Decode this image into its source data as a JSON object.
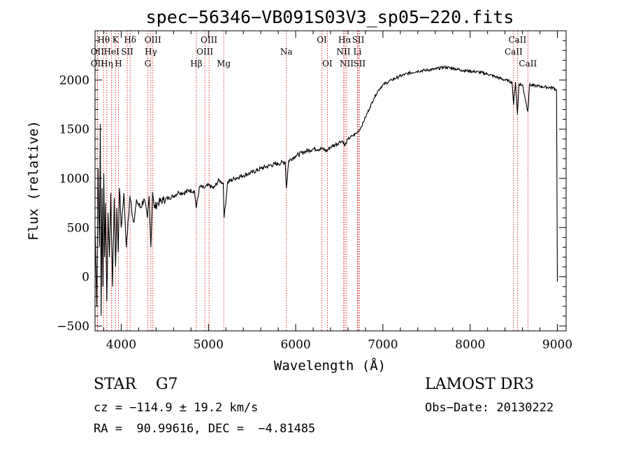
{
  "chart_data": {
    "type": "line",
    "title": "spec−56346−VB091S03V3_sp05−220.fits",
    "xlabel": "Wavelength (Å)",
    "ylabel": "Flux (relative)",
    "xlim": [
      3700,
      9100
    ],
    "ylim": [
      -550,
      2500
    ],
    "xticks": [
      4000,
      5000,
      6000,
      7000,
      8000,
      9000
    ],
    "xtick_labels": [
      "4000",
      "5000",
      "6000",
      "7000",
      "8000",
      "9000"
    ],
    "yticks": [
      -500,
      0,
      500,
      1000,
      1500,
      2000
    ],
    "ytick_labels": [
      "−500",
      "0",
      "500",
      "1000",
      "1500",
      "2000"
    ],
    "x_minor_step": 200,
    "y_minor_step": 100,
    "series": [
      {
        "name": "flux",
        "x": [
          3700,
          3720,
          3735,
          3750,
          3760,
          3770,
          3780,
          3790,
          3800,
          3810,
          3820,
          3835,
          3850,
          3865,
          3880,
          3900,
          3920,
          3935,
          3950,
          3965,
          3980,
          4000,
          4030,
          4060,
          4100,
          4140,
          4180,
          4220,
          4260,
          4300,
          4320,
          4340,
          4360,
          4380,
          4420,
          4480,
          4540,
          4600,
          4660,
          4720,
          4780,
          4840,
          4860,
          4900,
          4950,
          5000,
          5060,
          5120,
          5170,
          5180,
          5220,
          5300,
          5400,
          5500,
          5600,
          5700,
          5800,
          5880,
          5893,
          5920,
          6000,
          6100,
          6200,
          6300,
          6360,
          6400,
          6450,
          6500,
          6540,
          6563,
          6600,
          6650,
          6700,
          6750,
          6800,
          6850,
          6900,
          6950,
          7000,
          7100,
          7200,
          7300,
          7400,
          7500,
          7600,
          7700,
          7800,
          7900,
          8000,
          8100,
          8200,
          8300,
          8400,
          8480,
          8498,
          8520,
          8542,
          8560,
          8600,
          8662,
          8680,
          8750,
          8850,
          8950,
          8990,
          9000
        ],
        "y": [
          500,
          -300,
          1100,
          300,
          1550,
          -400,
          900,
          -100,
          1050,
          200,
          750,
          -250,
          650,
          200,
          850,
          -100,
          800,
          100,
          700,
          250,
          900,
          500,
          850,
          300,
          820,
          560,
          770,
          700,
          790,
          600,
          820,
          300,
          860,
          700,
          750,
          780,
          800,
          820,
          860,
          850,
          880,
          870,
          700,
          920,
          900,
          930,
          900,
          980,
          950,
          600,
          960,
          1000,
          1030,
          1060,
          1100,
          1130,
          1150,
          1170,
          900,
          1180,
          1230,
          1270,
          1300,
          1300,
          1280,
          1320,
          1340,
          1370,
          1380,
          1330,
          1400,
          1430,
          1460,
          1520,
          1620,
          1720,
          1820,
          1900,
          1950,
          2000,
          2040,
          2070,
          2090,
          2100,
          2110,
          2130,
          2120,
          2100,
          2090,
          2080,
          2060,
          2030,
          2000,
          1980,
          1750,
          1980,
          1650,
          1960,
          1950,
          1680,
          1950,
          1940,
          1930,
          1920,
          1900,
          -50
        ]
      }
    ],
    "emission_lines": [
      {
        "name": "Hθ",
        "x": 3798,
        "row": 0
      },
      {
        "name": "OII",
        "x": 3727,
        "row": 1
      },
      {
        "name": "OII",
        "x": 3727,
        "row": 2
      },
      {
        "name": "K",
        "x": 3934,
        "row": 0
      },
      {
        "name": "HeI",
        "x": 3889,
        "row": 1
      },
      {
        "name": "Hη",
        "x": 3835,
        "row": 2
      },
      {
        "name": "Hδ",
        "x": 4102,
        "row": 0
      },
      {
        "name": "SII",
        "x": 4069,
        "row": 1
      },
      {
        "name": "H",
        "x": 3968,
        "row": 2
      },
      {
        "name": "OIII",
        "x": 4363,
        "row": 0
      },
      {
        "name": "Hγ",
        "x": 4340,
        "row": 1
      },
      {
        "name": "G",
        "x": 4305,
        "row": 2
      },
      {
        "name": "OIII",
        "x": 5007,
        "row": 0
      },
      {
        "name": "OIII",
        "x": 4959,
        "row": 1
      },
      {
        "name": "Hβ",
        "x": 4861,
        "row": 2
      },
      {
        "name": "Mg",
        "x": 5175,
        "row": 2
      },
      {
        "name": "Na",
        "x": 5893,
        "row": 1
      },
      {
        "name": "OI",
        "x": 6300,
        "row": 0
      },
      {
        "name": "OI",
        "x": 6363,
        "row": 2
      },
      {
        "name": "Hα",
        "x": 6563,
        "row": 0
      },
      {
        "name": "NII",
        "x": 6548,
        "row": 1
      },
      {
        "name": "NII",
        "x": 6584,
        "row": 2
      },
      {
        "name": "SII",
        "x": 6717,
        "row": 0
      },
      {
        "name": "Li",
        "x": 6708,
        "row": 1
      },
      {
        "name": "SII",
        "x": 6731,
        "row": 2
      },
      {
        "name": "CaII",
        "x": 8542,
        "row": 0
      },
      {
        "name": "CaII",
        "x": 8498,
        "row": 1
      },
      {
        "name": "CaII",
        "x": 8662,
        "row": 2
      }
    ]
  },
  "info": {
    "object_type": "STAR",
    "subclass": "G7",
    "survey": "LAMOST DR3",
    "cz": "cz = −114.9 ± 19.2 km/s",
    "obs_date": "Obs−Date: 20130222",
    "coords": "RA =  90.99616, DEC =  −4.81485"
  },
  "colors": {
    "spectrum": "#000000",
    "line_marker": "#cc0000",
    "axes": "#000000",
    "background": "#ffffff"
  }
}
